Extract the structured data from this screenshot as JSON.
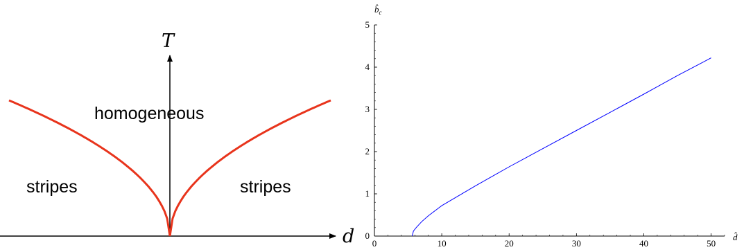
{
  "phase_diagram": {
    "x_axis_label": "d",
    "y_axis_label": "T",
    "regions": {
      "top": "homogeneous",
      "left": "stripes",
      "right": "stripes"
    },
    "colors": {
      "boundary": "#e8341c",
      "axes": "#000000"
    }
  },
  "chart_data": {
    "type": "line",
    "title": "",
    "xlabel": "d̂",
    "ylabel": "b̂",
    "ylabel_subscript": "c",
    "xlim": [
      0,
      52
    ],
    "ylim": [
      0,
      5
    ],
    "x_ticks": [
      "0",
      "10",
      "20",
      "30",
      "40",
      "50"
    ],
    "y_ticks": [
      "0",
      "1",
      "2",
      "3",
      "4",
      "5"
    ],
    "grid": false,
    "series": [
      {
        "color": "#0000ff",
        "x": [
          5.6,
          5.8,
          6.2,
          7,
          8,
          10,
          15,
          20,
          25,
          30,
          35,
          40,
          45,
          50
        ],
        "y": [
          0,
          0.12,
          0.2,
          0.34,
          0.48,
          0.72,
          1.19,
          1.64,
          2.07,
          2.5,
          2.93,
          3.36,
          3.8,
          4.22
        ]
      }
    ]
  }
}
